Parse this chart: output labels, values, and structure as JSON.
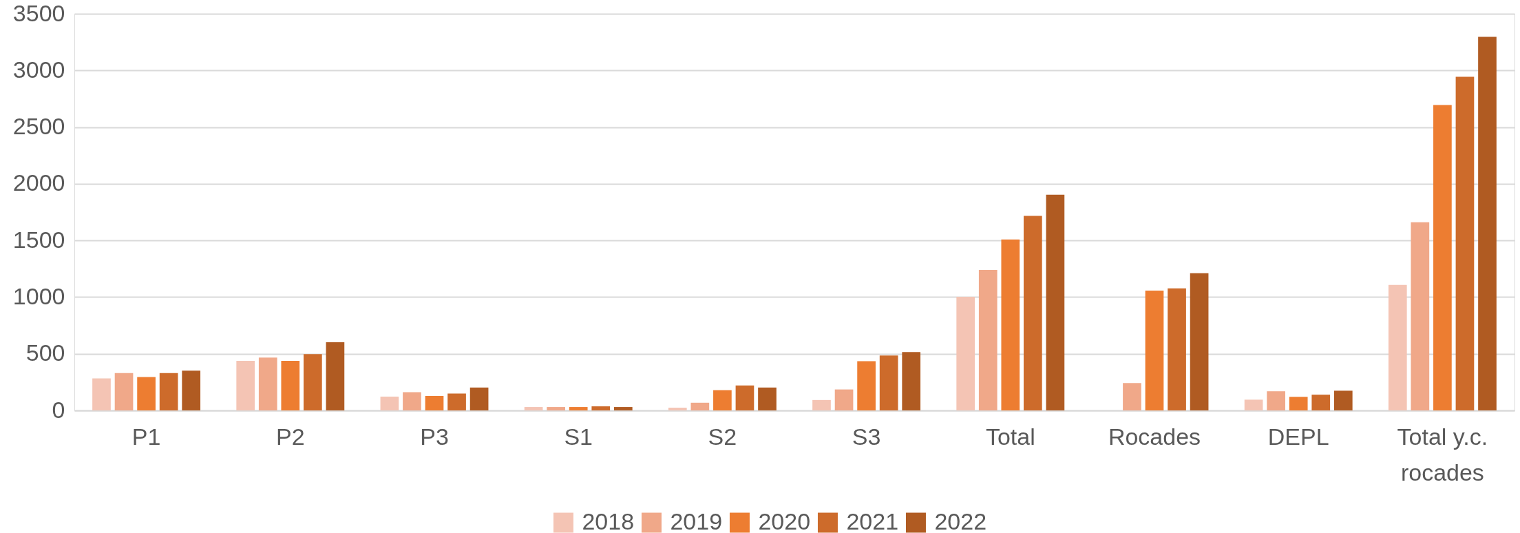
{
  "chart_data": {
    "type": "bar",
    "categories": [
      "P1",
      "P2",
      "P3",
      "S1",
      "S2",
      "S3",
      "Total",
      "Rocades",
      "DEPL",
      "Total y.c. rocades"
    ],
    "series": [
      {
        "name": "2018",
        "color": "#f4c4b4",
        "values": [
          283,
          437,
          122,
          30,
          24,
          92,
          1003,
          null,
          95,
          1107
        ]
      },
      {
        "name": "2019",
        "color": "#f0a889",
        "values": [
          330,
          467,
          161,
          30,
          68,
          185,
          1240,
          242,
          169,
          1661
        ]
      },
      {
        "name": "2020",
        "color": "#ed7d31",
        "values": [
          295,
          437,
          128,
          30,
          179,
          434,
          1509,
          1058,
          120,
          2695
        ]
      },
      {
        "name": "2021",
        "color": "#cd6b2b",
        "values": [
          330,
          497,
          149,
          36,
          220,
          485,
          1716,
          1077,
          139,
          2944
        ]
      },
      {
        "name": "2022",
        "color": "#b05b22",
        "values": [
          351,
          601,
          202,
          30,
          202,
          515,
          1903,
          1210,
          174,
          3297
        ]
      }
    ],
    "ylim": [
      0,
      3500
    ],
    "yticks": [
      0,
      500,
      1000,
      1500,
      2000,
      2500,
      3000,
      3500
    ],
    "grid": "y",
    "legend": "bottom"
  }
}
